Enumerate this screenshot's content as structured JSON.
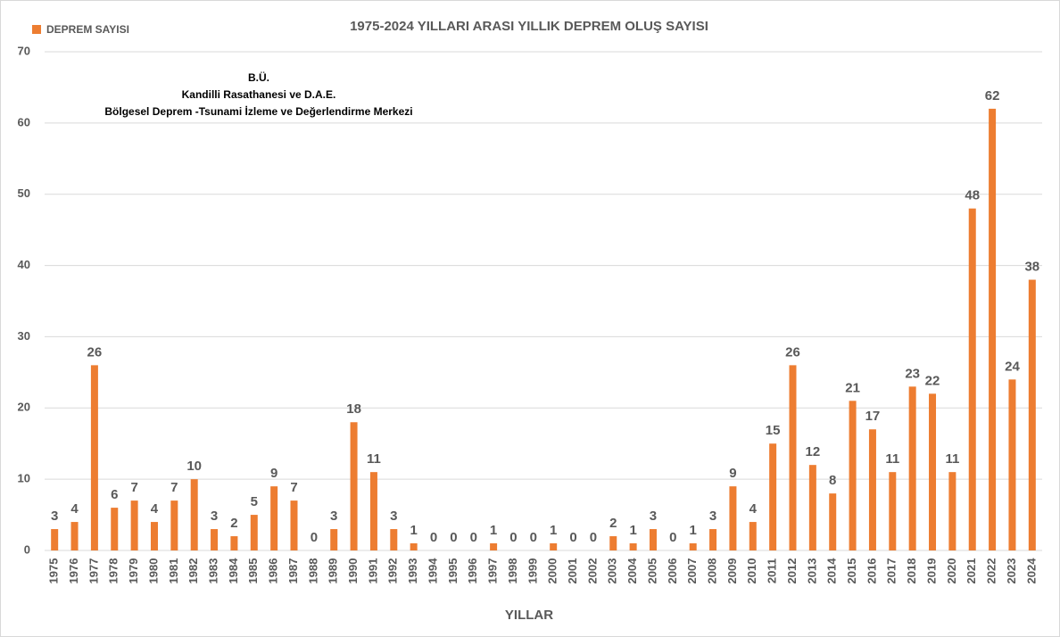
{
  "chart_data": {
    "type": "bar",
    "title": "1975-2024 YILLARI ARASI YILLIK DEPREM OLUŞ SAYISI",
    "x_label": "YILLAR",
    "annotations": [
      "B.Ü.",
      "Kandilli Rasathanesi ve D.A.E.",
      "Bölgesel Deprem -Tsunami İzleme ve Değerlendirme Merkezi"
    ],
    "categories": [
      "1975",
      "1976",
      "1977",
      "1978",
      "1979",
      "1980",
      "1981",
      "1982",
      "1983",
      "1984",
      "1985",
      "1986",
      "1987",
      "1988",
      "1989",
      "1990",
      "1991",
      "1992",
      "1993",
      "1994",
      "1995",
      "1996",
      "1997",
      "1998",
      "1999",
      "2000",
      "2001",
      "2002",
      "2003",
      "2004",
      "2005",
      "2006",
      "2007",
      "2008",
      "2009",
      "2010",
      "2011",
      "2012",
      "2013",
      "2014",
      "2015",
      "2016",
      "2017",
      "2018",
      "2019",
      "2020",
      "2021",
      "2022",
      "2023",
      "2024"
    ],
    "series": [
      {
        "name": "DEPREM SAYISI",
        "color": "#ed7d31",
        "values": [
          3,
          4,
          26,
          6,
          7,
          4,
          7,
          10,
          3,
          2,
          5,
          9,
          7,
          0,
          3,
          18,
          11,
          3,
          1,
          0,
          0,
          0,
          1,
          0,
          0,
          1,
          0,
          0,
          2,
          1,
          3,
          0,
          1,
          3,
          9,
          4,
          15,
          26,
          12,
          8,
          21,
          17,
          11,
          23,
          22,
          11,
          48,
          62,
          24,
          38
        ]
      }
    ],
    "ylim": [
      0,
      70
    ],
    "yticks": [
      0,
      10,
      20,
      30,
      40,
      50,
      60,
      70
    ],
    "grid": true,
    "legend": "top-left"
  }
}
